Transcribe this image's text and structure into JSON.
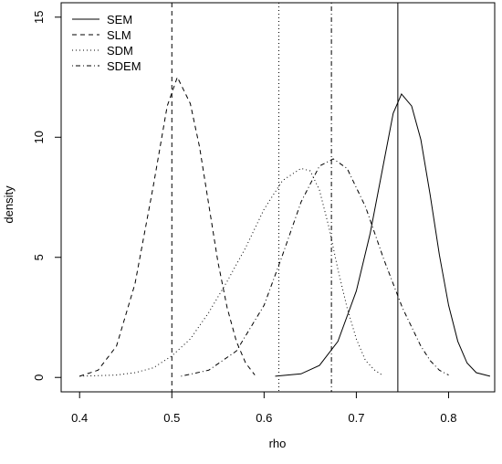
{
  "chart_data": {
    "type": "line",
    "title": "",
    "xlabel": "rho",
    "ylabel": "density",
    "xlim": [
      0.38,
      0.85
    ],
    "ylim": [
      -0.6,
      15.6
    ],
    "x_ticks": [
      0.4,
      0.5,
      0.6,
      0.7,
      0.8
    ],
    "y_ticks": [
      0,
      5,
      10,
      15
    ],
    "x_tick_labels": [
      "0.4",
      "0.5",
      "0.6",
      "0.7",
      "0.8"
    ],
    "y_tick_labels": [
      "0",
      "5",
      "10",
      "15"
    ],
    "grid": false,
    "legend_position": "top-left",
    "series": [
      {
        "name": "SEM",
        "line_style": "solid",
        "vertical_line_x": 0.745,
        "points": [
          [
            0.612,
            0.05
          ],
          [
            0.64,
            0.15
          ],
          [
            0.66,
            0.5
          ],
          [
            0.68,
            1.5
          ],
          [
            0.7,
            3.6
          ],
          [
            0.715,
            6.0
          ],
          [
            0.73,
            9.0
          ],
          [
            0.74,
            11.0
          ],
          [
            0.749,
            11.8
          ],
          [
            0.76,
            11.3
          ],
          [
            0.77,
            9.9
          ],
          [
            0.78,
            7.6
          ],
          [
            0.79,
            5.1
          ],
          [
            0.8,
            3.0
          ],
          [
            0.81,
            1.5
          ],
          [
            0.82,
            0.6
          ],
          [
            0.83,
            0.2
          ],
          [
            0.845,
            0.05
          ]
        ]
      },
      {
        "name": "SLM",
        "line_style": "dashed",
        "vertical_line_x": 0.5,
        "points": [
          [
            0.4,
            0.05
          ],
          [
            0.42,
            0.3
          ],
          [
            0.44,
            1.3
          ],
          [
            0.46,
            3.9
          ],
          [
            0.48,
            8.0
          ],
          [
            0.495,
            11.3
          ],
          [
            0.506,
            12.5
          ],
          [
            0.52,
            11.4
          ],
          [
            0.53,
            9.6
          ],
          [
            0.54,
            7.2
          ],
          [
            0.55,
            4.8
          ],
          [
            0.56,
            2.9
          ],
          [
            0.57,
            1.5
          ],
          [
            0.58,
            0.6
          ],
          [
            0.59,
            0.1
          ]
        ]
      },
      {
        "name": "SDM",
        "line_style": "dotted",
        "vertical_line_x": 0.616,
        "points": [
          [
            0.4,
            0.05
          ],
          [
            0.44,
            0.1
          ],
          [
            0.46,
            0.2
          ],
          [
            0.48,
            0.4
          ],
          [
            0.5,
            0.9
          ],
          [
            0.52,
            1.6
          ],
          [
            0.54,
            2.7
          ],
          [
            0.56,
            4.0
          ],
          [
            0.58,
            5.4
          ],
          [
            0.6,
            7.0
          ],
          [
            0.62,
            8.2
          ],
          [
            0.64,
            8.7
          ],
          [
            0.65,
            8.6
          ],
          [
            0.66,
            7.8
          ],
          [
            0.67,
            6.3
          ],
          [
            0.68,
            4.5
          ],
          [
            0.69,
            2.9
          ],
          [
            0.7,
            1.6
          ],
          [
            0.71,
            0.7
          ],
          [
            0.72,
            0.3
          ],
          [
            0.728,
            0.1
          ]
        ]
      },
      {
        "name": "SDEM",
        "line_style": "dotdash",
        "vertical_line_x": 0.673,
        "points": [
          [
            0.51,
            0.05
          ],
          [
            0.54,
            0.3
          ],
          [
            0.57,
            1.1
          ],
          [
            0.6,
            3.0
          ],
          [
            0.62,
            5.1
          ],
          [
            0.64,
            7.3
          ],
          [
            0.66,
            8.8
          ],
          [
            0.675,
            9.1
          ],
          [
            0.69,
            8.7
          ],
          [
            0.71,
            7.1
          ],
          [
            0.73,
            4.9
          ],
          [
            0.75,
            2.9
          ],
          [
            0.77,
            1.3
          ],
          [
            0.78,
            0.7
          ],
          [
            0.79,
            0.3
          ],
          [
            0.8,
            0.1
          ]
        ]
      }
    ]
  }
}
